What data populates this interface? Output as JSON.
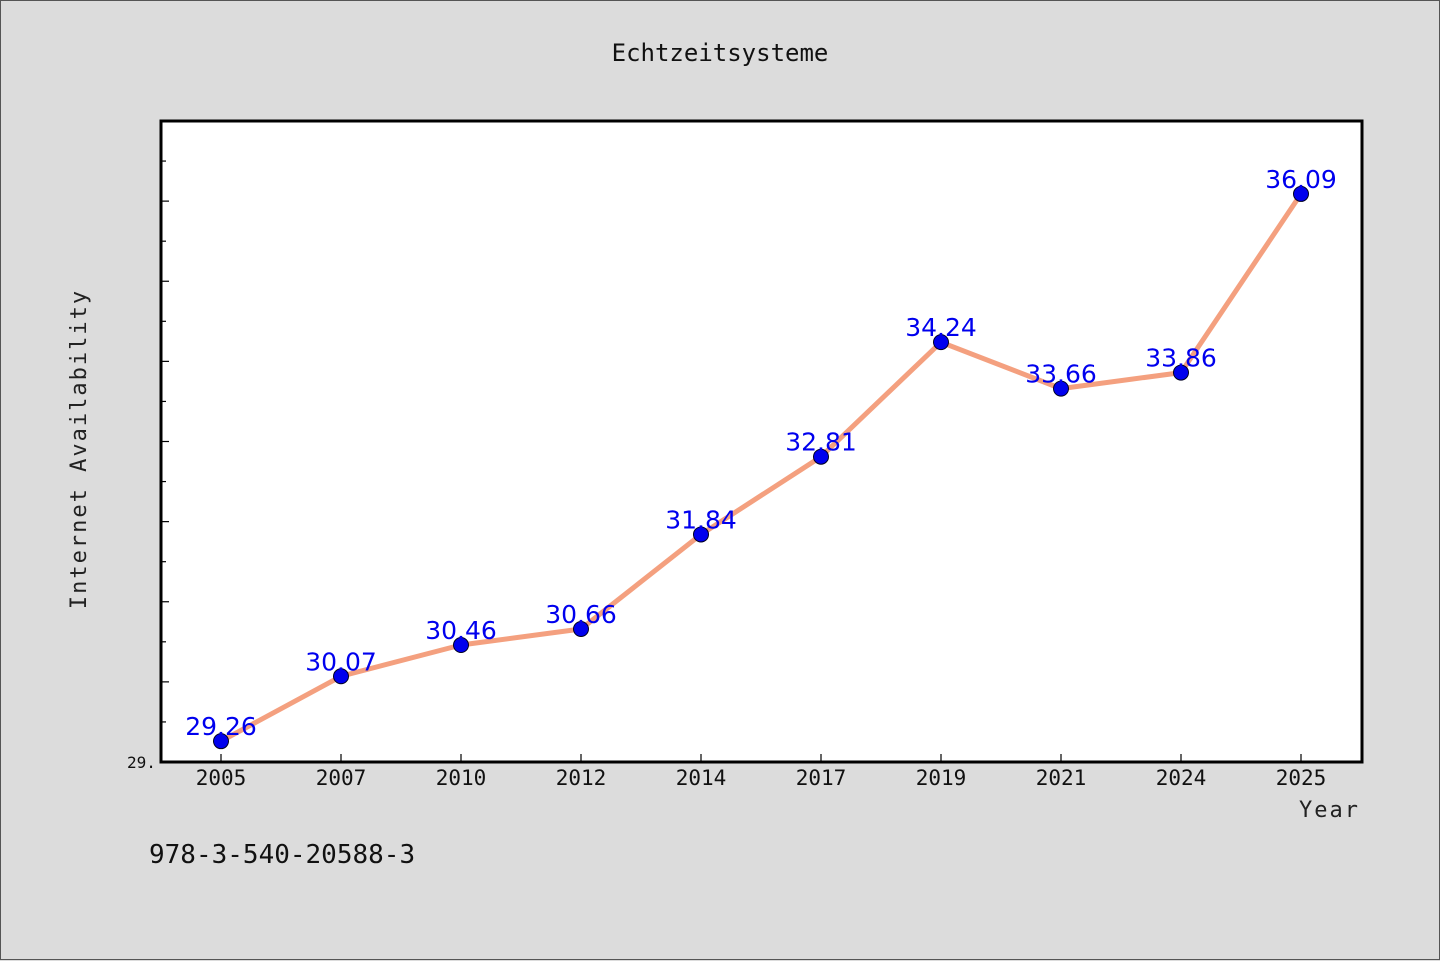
{
  "footer_text": "978-3-540-20588-3",
  "colors": {
    "background": "#dcdcdc",
    "plot_background": "#ffffff",
    "line": "#f4a07f",
    "marker": "#0000ee",
    "data_label": "#0000ee"
  },
  "chart_data": {
    "type": "line",
    "title": "Echtzeitsysteme",
    "xlabel": "Year",
    "ylabel": "Internet Availability",
    "categories": [
      "2005",
      "2007",
      "2010",
      "2012",
      "2014",
      "2017",
      "2019",
      "2021",
      "2024",
      "2025"
    ],
    "series": [
      {
        "values": [
          29.26,
          30.07,
          30.46,
          30.66,
          31.84,
          32.81,
          34.24,
          33.66,
          33.86,
          36.09
        ],
        "labels": [
          "29.26",
          "30.07",
          "30.46",
          "30.66",
          "31.84",
          "32.81",
          "34.24",
          "33.66",
          "33.86",
          "36.09"
        ]
      }
    ],
    "y_tick_label": "29.",
    "ylim": [
      29.0,
      37.0
    ],
    "grid": false,
    "legend": "none"
  }
}
